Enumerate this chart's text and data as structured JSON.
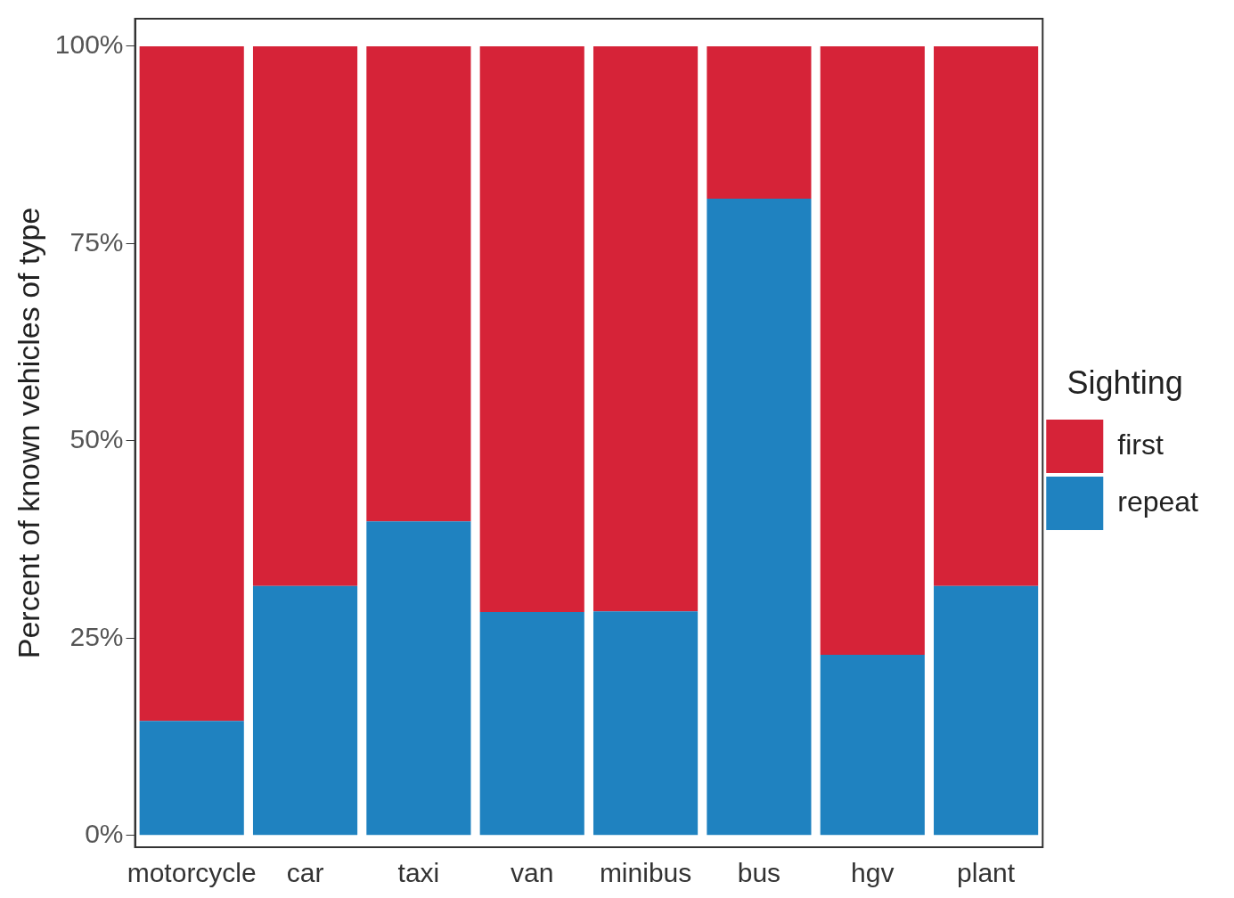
{
  "chart_data": {
    "type": "bar",
    "stacked": true,
    "ylabel": "Percent of known vehicles of type",
    "legend_title": "Sighting",
    "legend": "right",
    "categories": [
      "motorcycle",
      "car",
      "taxi",
      "van",
      "minibus",
      "bus",
      "hgv",
      "plant"
    ],
    "series": [
      {
        "name": "repeat",
        "color": "#1f82c0",
        "values": [
          14.5,
          31.6,
          39.8,
          28.3,
          28.4,
          80.7,
          22.9,
          31.6
        ]
      },
      {
        "name": "first",
        "color": "#d62338",
        "values": [
          85.5,
          68.4,
          60.2,
          71.7,
          71.6,
          19.3,
          77.1,
          68.4
        ]
      }
    ],
    "ylim": [
      -1.5,
      103.5
    ],
    "yticks": [
      {
        "value": 0,
        "label": "0%"
      },
      {
        "value": 25,
        "label": "25%"
      },
      {
        "value": 50,
        "label": "50%"
      },
      {
        "value": 75,
        "label": "75%"
      },
      {
        "value": 100,
        "label": "100%"
      }
    ],
    "grid": false
  }
}
